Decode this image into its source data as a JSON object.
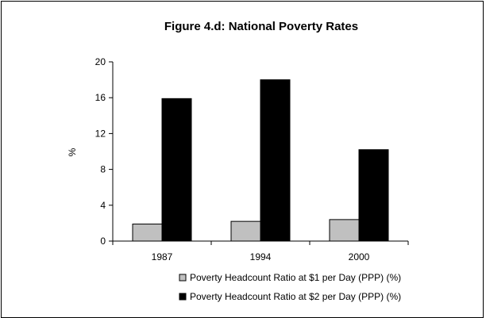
{
  "chart_data": {
    "type": "bar",
    "title": "Figure 4.d: National Poverty Rates",
    "xlabel": "",
    "ylabel": "%",
    "categories": [
      "1987",
      "1994",
      "2000"
    ],
    "series": [
      {
        "name": "Poverty Headcount Ratio at $1 per Day (PPP) (%)",
        "values": [
          1.9,
          2.2,
          2.4
        ],
        "color": "#c0c0c0"
      },
      {
        "name": "Poverty Headcount Ratio at $2 per Day (PPP) (%)",
        "values": [
          15.9,
          18.0,
          10.2
        ],
        "color": "#000000"
      }
    ],
    "ylim": [
      0,
      20
    ],
    "yticks": [
      0,
      4,
      8,
      12,
      16,
      20
    ],
    "grid": false,
    "legend_position": "bottom"
  }
}
